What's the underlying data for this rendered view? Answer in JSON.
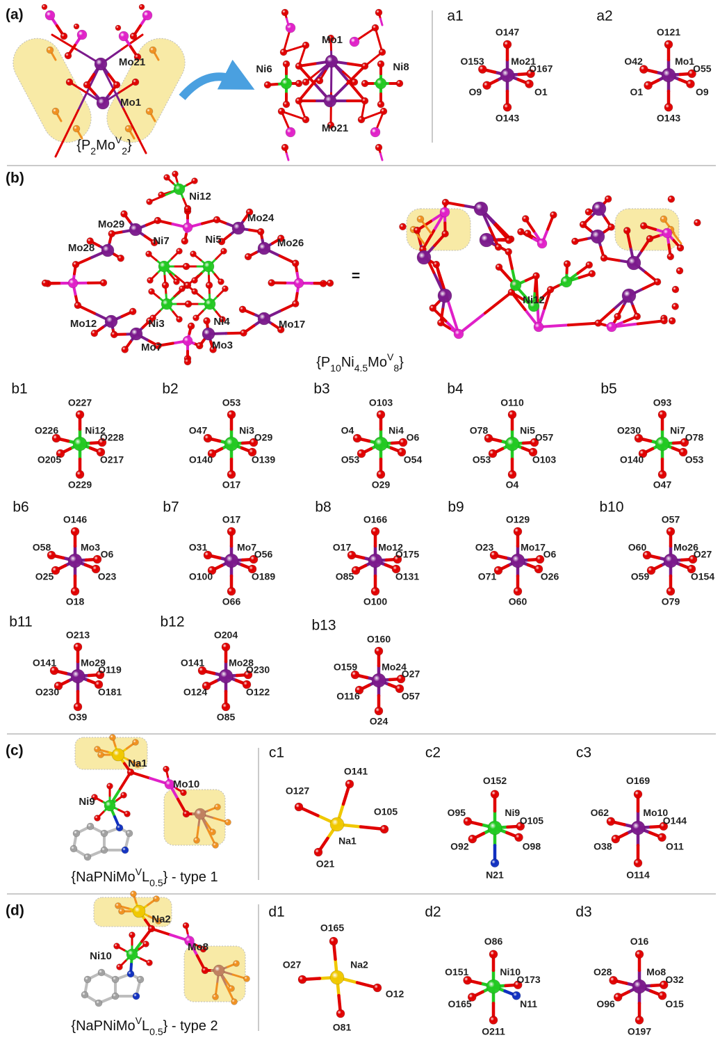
{
  "panels": {
    "a": {
      "label": "(a)",
      "left_labels": [
        "Mo21",
        "Mo1"
      ],
      "right_labels": [
        "Mo1",
        "Ni6",
        "Ni8",
        "Mo21"
      ],
      "formula": [
        {
          "text": "{P"
        },
        {
          "text": "2",
          "sub": true
        },
        {
          "text": "Mo"
        },
        {
          "text": "V",
          "sup": true
        },
        {
          "text": "2",
          "sub": true
        },
        {
          "text": "}"
        }
      ]
    },
    "b": {
      "label": "(b)",
      "left_labels": [
        "Ni12",
        "Mo24",
        "Mo29",
        "Ni7",
        "Ni5",
        "Mo26",
        "Mo28",
        "Mo12",
        "Ni3",
        "Ni4",
        "Mo17",
        "Mo7",
        "Mo3"
      ],
      "equals": "=",
      "right_labels": [
        "Ni12"
      ],
      "formula": [
        {
          "text": "{P"
        },
        {
          "text": "10",
          "sub": true
        },
        {
          "text": "Ni"
        },
        {
          "text": "4.5",
          "sub": true
        },
        {
          "text": "Mo"
        },
        {
          "text": "V",
          "sup": true
        },
        {
          "text": "8",
          "sub": true
        },
        {
          "text": "}"
        }
      ]
    },
    "c": {
      "label": "(c)",
      "left_labels": [
        "Na1",
        "Mo10",
        "Ni9"
      ],
      "formula": [
        {
          "text": "{NaPNiMo"
        },
        {
          "text": "V",
          "sup": true
        },
        {
          "text": "L"
        },
        {
          "text": "0.5",
          "sub": true
        },
        {
          "text": "} - type 1"
        }
      ]
    },
    "d": {
      "label": "(d)",
      "left_labels": [
        "Na2",
        "Mo8",
        "Ni10"
      ],
      "formula": [
        {
          "text": "{NaPNiMo"
        },
        {
          "text": "V",
          "sup": true
        },
        {
          "text": "L"
        },
        {
          "text": "0.5",
          "sub": true
        },
        {
          "text": "} - type 2"
        }
      ]
    }
  },
  "figures": [
    {
      "id": "a1",
      "center": "Mo21",
      "center_color": "#7b1a8c",
      "ligands": [
        "O147",
        "O153",
        "O167",
        "O9",
        "O1",
        "O143"
      ]
    },
    {
      "id": "a2",
      "center": "Mo1",
      "center_color": "#7b1a8c",
      "ligands": [
        "O121",
        "O42",
        "O55",
        "O1",
        "O9",
        "O143"
      ]
    },
    {
      "id": "b1",
      "center": "Ni12",
      "center_color": "#22c922",
      "ligands": [
        "O227",
        "O226",
        "O228",
        "O205",
        "O217",
        "O229"
      ]
    },
    {
      "id": "b2",
      "center": "Ni3",
      "center_color": "#22c922",
      "ligands": [
        "O53",
        "O47",
        "O29",
        "O140",
        "O139",
        "O17"
      ]
    },
    {
      "id": "b3",
      "center": "Ni4",
      "center_color": "#22c922",
      "ligands": [
        "O103",
        "O4",
        "O6",
        "O53",
        "O54",
        "O29"
      ]
    },
    {
      "id": "b4",
      "center": "Ni5",
      "center_color": "#22c922",
      "ligands": [
        "O110",
        "O78",
        "O57",
        "O53",
        "O103",
        "O4"
      ]
    },
    {
      "id": "b5",
      "center": "Ni7",
      "center_color": "#22c922",
      "ligands": [
        "O93",
        "O230",
        "O78",
        "O140",
        "O53",
        "O47"
      ]
    },
    {
      "id": "b6",
      "center": "Mo3",
      "center_color": "#7b1a8c",
      "ligands": [
        "O146",
        "O58",
        "O6",
        "O25",
        "O23",
        "O18"
      ]
    },
    {
      "id": "b7",
      "center": "Mo7",
      "center_color": "#7b1a8c",
      "ligands": [
        "O17",
        "O31",
        "O56",
        "O100",
        "O189",
        "O66"
      ]
    },
    {
      "id": "b8",
      "center": "Mo12",
      "center_color": "#7b1a8c",
      "ligands": [
        "O166",
        "O17",
        "O175",
        "O85",
        "O131",
        "O100"
      ]
    },
    {
      "id": "b9",
      "center": "Mo17",
      "center_color": "#7b1a8c",
      "ligands": [
        "O129",
        "O23",
        "O6",
        "O71",
        "O26",
        "O60"
      ]
    },
    {
      "id": "b10",
      "center": "Mo26",
      "center_color": "#7b1a8c",
      "ligands": [
        "O57",
        "O60",
        "O27",
        "O59",
        "O154",
        "O79"
      ]
    },
    {
      "id": "b11",
      "center": "Mo29",
      "center_color": "#7b1a8c",
      "ligands": [
        "O213",
        "O141",
        "O119",
        "O230",
        "O181",
        "O39"
      ]
    },
    {
      "id": "b12",
      "center": "Mo28",
      "center_color": "#7b1a8c",
      "ligands": [
        "O204",
        "O141",
        "O230",
        "O124",
        "O122",
        "O85"
      ]
    },
    {
      "id": "b13",
      "center": "Mo24",
      "center_color": "#7b1a8c",
      "ligands": [
        "O160",
        "O159",
        "O27",
        "O116",
        "O57",
        "O24"
      ]
    },
    {
      "id": "c1",
      "center": "Na1",
      "center_color": "#f0c800",
      "ligands": [
        "O141",
        "O127",
        "O105",
        "O21"
      ]
    },
    {
      "id": "c2",
      "center": "Ni9",
      "center_color": "#22c922",
      "ligands": [
        "O152",
        "O95",
        "O105",
        "O92",
        "O98",
        "N21"
      ],
      "ligand_colors": [
        "#e00000",
        "#e00000",
        "#e00000",
        "#e00000",
        "#e00000",
        "#1030c0"
      ]
    },
    {
      "id": "c3",
      "center": "Mo10",
      "center_color": "#7b1a8c",
      "ligands": [
        "O169",
        "O62",
        "O144",
        "O38",
        "O11",
        "O114"
      ]
    },
    {
      "id": "d1",
      "center": "Na2",
      "center_color": "#f0c800",
      "ligands": [
        "O165",
        "O27",
        "O12",
        "O81"
      ]
    },
    {
      "id": "d2",
      "center": "Ni10",
      "center_color": "#22c922",
      "ligands": [
        "O86",
        "O151",
        "O173",
        "O165",
        "N11",
        "O211"
      ],
      "ligand_colors": [
        "#e00000",
        "#e00000",
        "#e00000",
        "#e00000",
        "#1030c0",
        "#e00000"
      ]
    },
    {
      "id": "d3",
      "center": "Mo8",
      "center_color": "#7b1a8c",
      "ligands": [
        "O16",
        "O28",
        "O32",
        "O96",
        "O15",
        "O197"
      ]
    }
  ]
}
